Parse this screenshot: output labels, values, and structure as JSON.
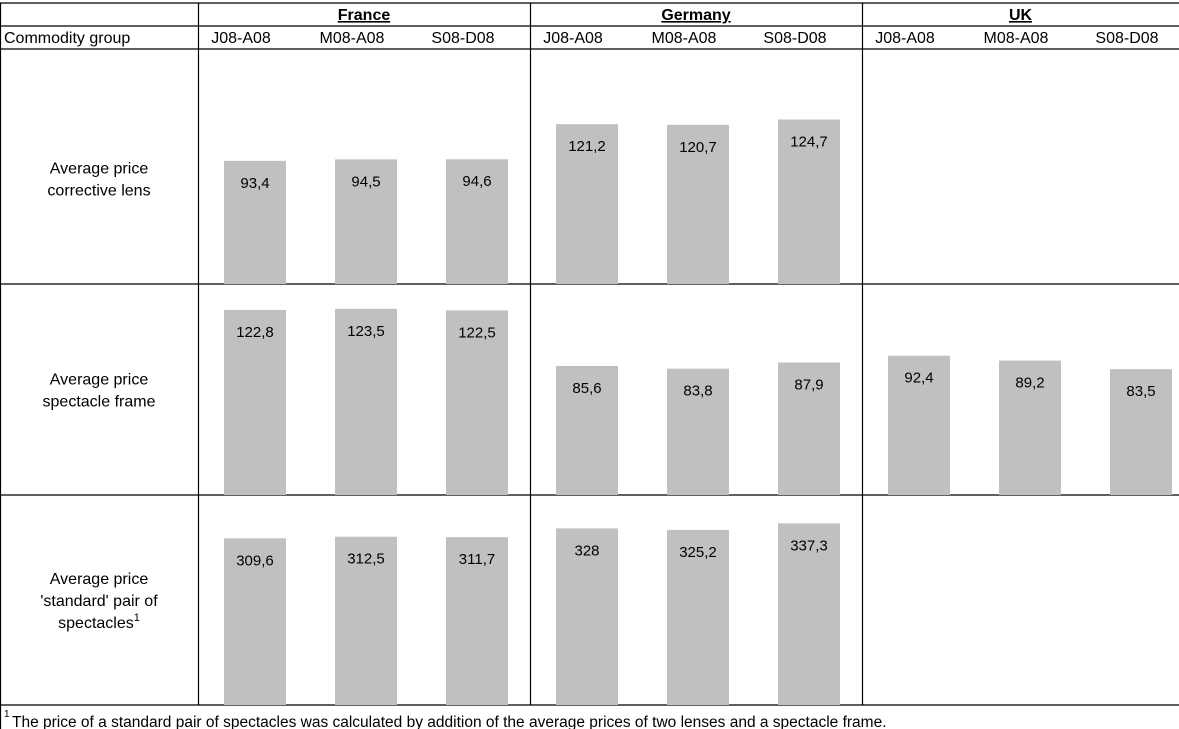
{
  "header": {
    "first_column_label": "Commodity group",
    "countries": [
      "France",
      "Germany",
      "UK"
    ],
    "periods": [
      "J08-A08",
      "M08-A08",
      "S08-D08"
    ]
  },
  "colors": {
    "bar": "#c0c0c0",
    "grid": "#000000",
    "text": "#000000"
  },
  "footnote": {
    "marker": "1",
    "text": "The price of a standard pair of spectacles was calculated by addition of the average prices of two lenses and a spectacle frame."
  },
  "chart_data": {
    "type": "bar",
    "layout": "small-multiples table",
    "countries": [
      "France",
      "Germany",
      "UK"
    ],
    "categories": [
      "J08-A08",
      "M08-A08",
      "S08-D08"
    ],
    "rows": [
      {
        "label_lines": [
          "Average price",
          "corrective lens"
        ],
        "superscript": "",
        "ylim": [
          0,
          160
        ],
        "values": {
          "France": [
            93.4,
            94.5,
            94.6
          ],
          "Germany": [
            121.2,
            120.7,
            124.7
          ],
          "UK": null
        },
        "labels": {
          "France": [
            "93,4",
            "94,5",
            "94,6"
          ],
          "Germany": [
            "121,2",
            "120,7",
            "124,7"
          ],
          "UK": null
        }
      },
      {
        "label_lines": [
          "Average price",
          "spectacle frame"
        ],
        "superscript": "",
        "ylim": [
          0,
          140
        ],
        "values": {
          "France": [
            122.8,
            123.5,
            122.5
          ],
          "Germany": [
            85.6,
            83.8,
            87.9
          ],
          "UK": [
            92.4,
            89.2,
            83.5
          ]
        },
        "labels": {
          "France": [
            "122,8",
            "123,5",
            "122,5"
          ],
          "Germany": [
            "85,6",
            "83,8",
            "87,9"
          ],
          "UK": [
            "92,4",
            "89,2",
            "83,5"
          ]
        }
      },
      {
        "label_lines": [
          "Average price",
          "'standard' pair of",
          "spectacles"
        ],
        "superscript": "1",
        "ylim": [
          0,
          390
        ],
        "values": {
          "France": [
            309.6,
            312.5,
            311.7
          ],
          "Germany": [
            328,
            325.2,
            337.3
          ],
          "UK": null
        },
        "labels": {
          "France": [
            "309,6",
            "312,5",
            "311,7"
          ],
          "Germany": [
            "328",
            "325,2",
            "337,3"
          ],
          "UK": null
        }
      }
    ]
  }
}
